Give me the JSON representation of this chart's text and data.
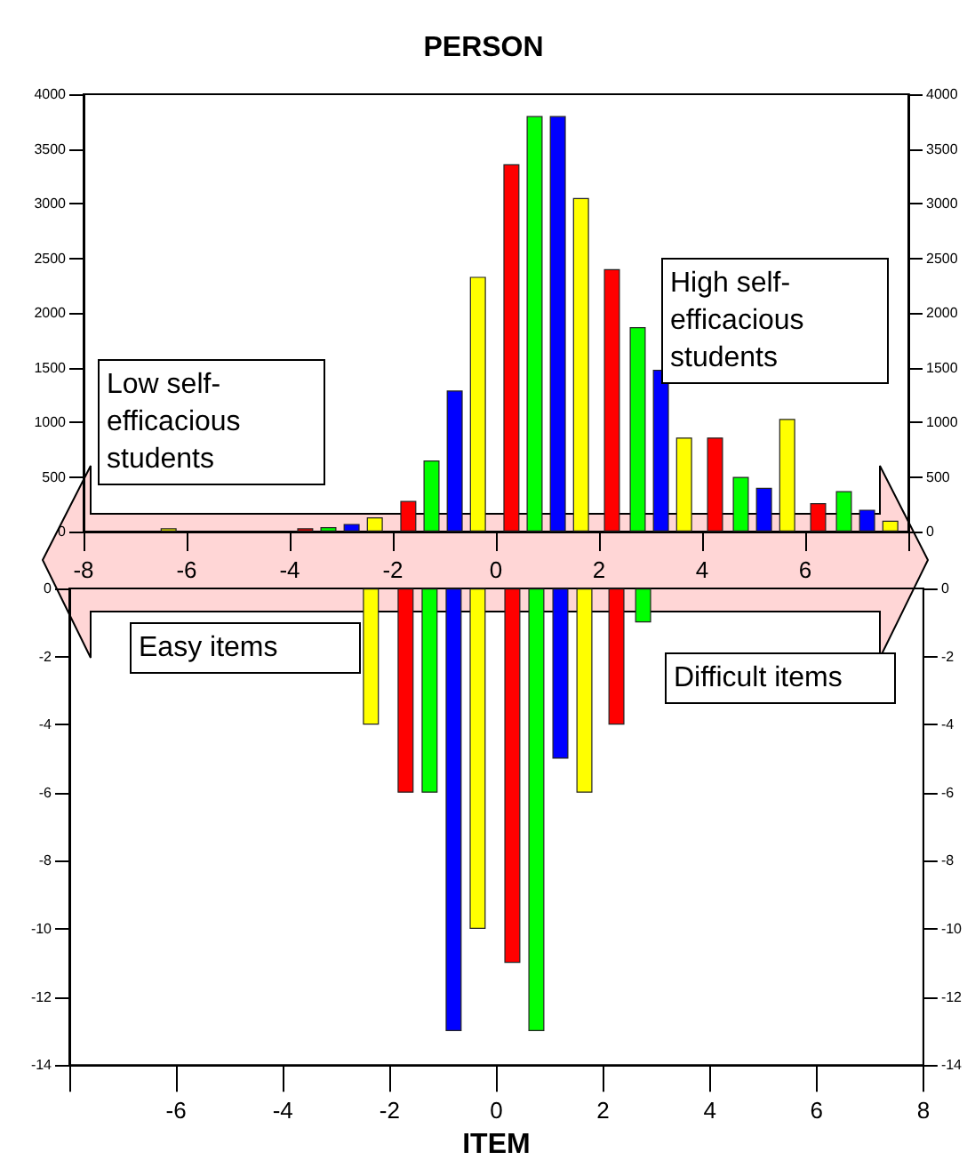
{
  "chart_data": [
    {
      "type": "bar",
      "title": "PERSON",
      "xlim": [
        -8,
        8
      ],
      "xticks": [
        -8,
        -6,
        -4,
        -2,
        0,
        2,
        4,
        6,
        {
          "value": 8,
          "label": null
        }
      ],
      "ylim": [
        0,
        4000
      ],
      "yticks": [
        0,
        500,
        1000,
        1500,
        2000,
        2500,
        3000,
        3500,
        4000
      ],
      "y2lim": [
        0,
        4000
      ],
      "y2ticks": [
        0,
        500,
        1000,
        1500,
        2000,
        2500,
        3000,
        3500,
        4000
      ],
      "series": [
        {
          "color": "#ff0000",
          "x": [
            -3.7,
            -1.7,
            0.3,
            2.25,
            4.25,
            6.25
          ],
          "values": [
            30,
            280,
            3360,
            2400,
            860,
            260
          ]
        },
        {
          "color": "#00ff00",
          "x": [
            -3.25,
            -1.25,
            0.75,
            2.75,
            4.75,
            6.75
          ],
          "values": [
            40,
            650,
            3800,
            1870,
            500,
            370
          ]
        },
        {
          "color": "#0000ff",
          "x": [
            -2.8,
            -0.8,
            1.2,
            3.2,
            5.2,
            7.2
          ],
          "values": [
            70,
            1290,
            3800,
            1480,
            400,
            200
          ]
        },
        {
          "color": "#ffff00",
          "x": [
            -6.35,
            -2.35,
            -0.35,
            1.65,
            3.65,
            5.65,
            7.65
          ],
          "values": [
            30,
            130,
            2330,
            3050,
            860,
            1030,
            100
          ]
        }
      ],
      "annotations": [
        "Low self-efficacious students",
        "High self-efficacious students"
      ]
    },
    {
      "type": "bar",
      "xlabel": "ITEM",
      "xlim": [
        -8,
        8
      ],
      "xticks": [
        {
          "value": -8,
          "label": null
        },
        -6,
        -4,
        -2,
        0,
        2,
        4,
        6,
        8
      ],
      "ylim": [
        -14,
        0
      ],
      "yticks": [
        -14,
        -12,
        -10,
        -8,
        -6,
        -4,
        -2,
        0
      ],
      "y2lim": [
        -14,
        0
      ],
      "y2ticks": [
        -14,
        -12,
        -10,
        -8,
        -6,
        -4,
        -2,
        0
      ],
      "series": [
        {
          "color": "#ff0000",
          "x": [
            -1.7,
            0.3,
            2.25
          ],
          "values": [
            -6,
            -11,
            -4
          ]
        },
        {
          "color": "#00ff00",
          "x": [
            -1.25,
            0.75,
            2.75
          ],
          "values": [
            -6,
            -13,
            -1
          ]
        },
        {
          "color": "#0000ff",
          "x": [
            -0.8,
            1.2
          ],
          "values": [
            -13,
            -5
          ]
        },
        {
          "color": "#ffff00",
          "x": [
            -2.35,
            -0.35,
            1.65
          ],
          "values": [
            -4,
            -10,
            -6
          ]
        }
      ],
      "annotations": [
        "Easy items",
        "Difficult items"
      ]
    }
  ]
}
